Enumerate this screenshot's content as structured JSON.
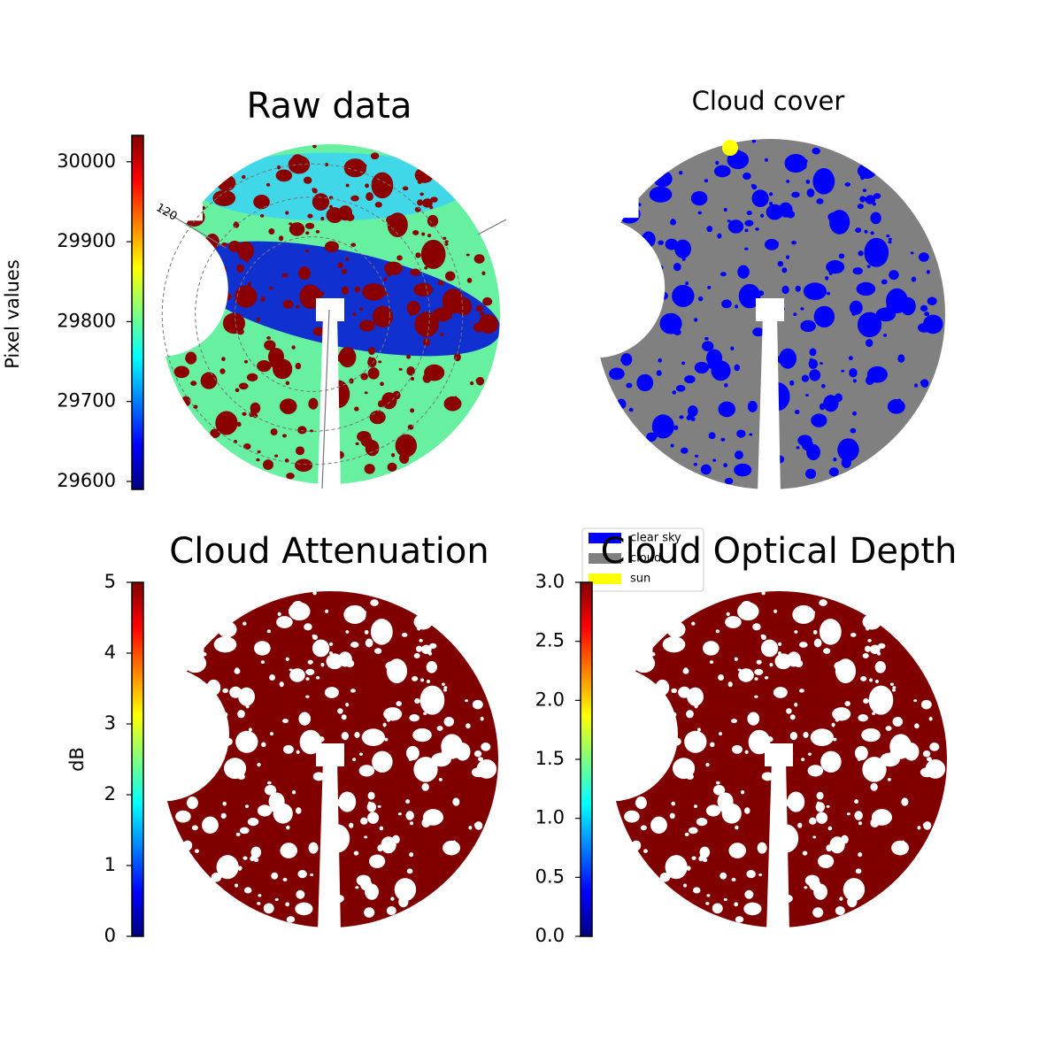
{
  "chart_data": [
    {
      "type": "image",
      "title": "Raw data",
      "colorbar_label": "Pixel values",
      "colormap": "jet",
      "clim": [
        29590,
        30033
      ],
      "cticks": [
        29600,
        29700,
        29800,
        29900,
        30000
      ],
      "annotations": [
        "120"
      ]
    },
    {
      "type": "image",
      "title": "Cloud cover",
      "legend": [
        {
          "name": "clear sky",
          "color": "#0000ff"
        },
        {
          "name": "cloud",
          "color": "#808080"
        },
        {
          "name": "sun",
          "color": "#ffff00"
        }
      ]
    },
    {
      "type": "image",
      "title": "Cloud Attenuation",
      "colorbar_label": "dB",
      "colormap": "jet",
      "clim": [
        0,
        5
      ],
      "cticks": [
        0,
        1,
        2,
        3,
        4,
        5
      ]
    },
    {
      "type": "image",
      "title": "Cloud Optical Depth",
      "colormap": "jet",
      "clim": [
        0,
        3
      ],
      "cticks": [
        {
          "value": 0,
          "label": "0.0"
        },
        {
          "value": 0.5,
          "label": "0.5"
        },
        {
          "value": 1,
          "label": "1.0"
        },
        {
          "value": 1.5,
          "label": "1.5"
        },
        {
          "value": 2,
          "label": "2.0"
        },
        {
          "value": 2.5,
          "label": "2.5"
        },
        {
          "value": 3,
          "label": "3.0"
        }
      ]
    }
  ]
}
